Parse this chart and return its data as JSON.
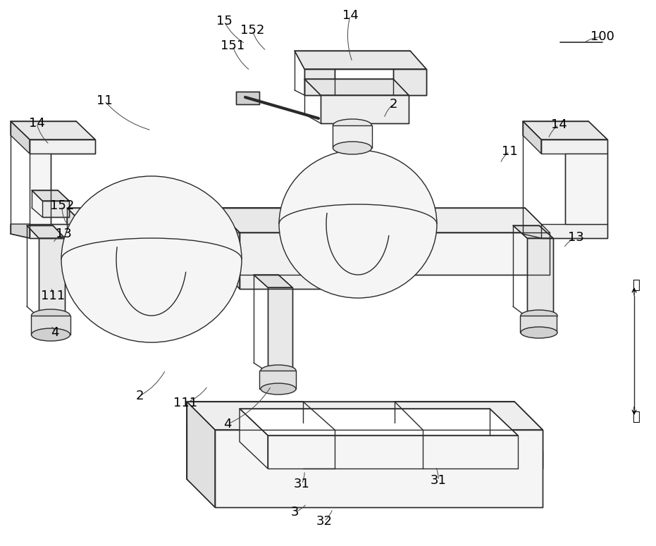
{
  "bg_color": "#ffffff",
  "line_color": "#2a2a2a",
  "lw": 1.0,
  "font_size": 13,
  "labels": [
    [
      "100",
      855,
      52
    ],
    [
      "15",
      318,
      30
    ],
    [
      "152",
      358,
      43
    ],
    [
      "151",
      330,
      65
    ],
    [
      "14",
      497,
      22
    ],
    [
      "2",
      558,
      148
    ],
    [
      "11",
      148,
      143
    ],
    [
      "14",
      52,
      175
    ],
    [
      "152",
      88,
      292
    ],
    [
      "13",
      90,
      332
    ],
    [
      "111",
      75,
      420
    ],
    [
      "4",
      78,
      472
    ],
    [
      "2",
      198,
      562
    ],
    [
      "111",
      263,
      572
    ],
    [
      "4",
      323,
      602
    ],
    [
      "31",
      428,
      687
    ],
    [
      "3",
      418,
      727
    ],
    [
      "32",
      460,
      740
    ],
    [
      "31",
      622,
      682
    ],
    [
      "11",
      723,
      215
    ],
    [
      "14",
      793,
      177
    ],
    [
      "13",
      817,
      337
    ],
    [
      "上",
      902,
      405
    ],
    [
      "下",
      902,
      592
    ]
  ],
  "leaders": [
    [
      855,
      52,
      827,
      62,
      false
    ],
    [
      318,
      30,
      348,
      62,
      false
    ],
    [
      358,
      43,
      378,
      72,
      false
    ],
    [
      330,
      65,
      355,
      100,
      false
    ],
    [
      497,
      22,
      500,
      88,
      false
    ],
    [
      558,
      148,
      545,
      168,
      false
    ],
    [
      148,
      143,
      215,
      185,
      false
    ],
    [
      52,
      175,
      70,
      205,
      false
    ],
    [
      88,
      292,
      95,
      318,
      false
    ],
    [
      90,
      332,
      75,
      345,
      false
    ],
    [
      75,
      420,
      72,
      408,
      false
    ],
    [
      78,
      472,
      72,
      462,
      false
    ],
    [
      198,
      562,
      235,
      525,
      false
    ],
    [
      263,
      572,
      295,
      548,
      false
    ],
    [
      323,
      602,
      385,
      548,
      false
    ],
    [
      428,
      687,
      432,
      668,
      false
    ],
    [
      418,
      727,
      435,
      715,
      false
    ],
    [
      460,
      740,
      472,
      722,
      false
    ],
    [
      622,
      682,
      618,
      662,
      false
    ],
    [
      723,
      215,
      710,
      232,
      false
    ],
    [
      793,
      177,
      778,
      197,
      false
    ],
    [
      817,
      337,
      800,
      352,
      false
    ]
  ]
}
